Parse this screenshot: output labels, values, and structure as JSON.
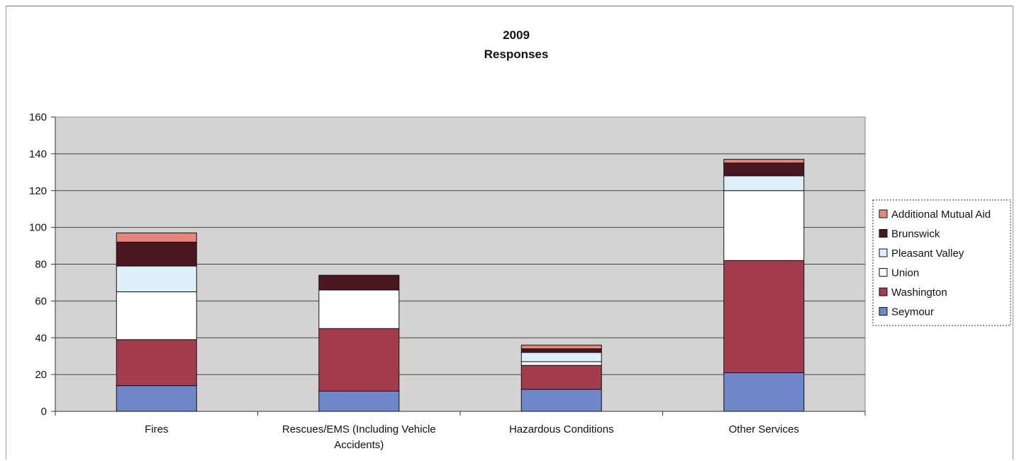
{
  "chart_data": {
    "type": "bar",
    "stacked": true,
    "title": "2009",
    "subtitle": "Responses",
    "xlabel": "",
    "ylabel": "",
    "ylim": [
      0,
      160
    ],
    "yticks": [
      "0",
      "20",
      "40",
      "60",
      "80",
      "100",
      "120",
      "140",
      "160"
    ],
    "grid": true,
    "legend_position": "right",
    "categories": [
      [
        "Fires"
      ],
      [
        "Rescues/EMS (Including Vehicle",
        "Accidents)"
      ],
      [
        "Hazardous Conditions"
      ],
      [
        "Other Services"
      ]
    ],
    "series": [
      {
        "name": "Seymour",
        "color": "#6f86c8",
        "values": [
          14,
          11,
          12,
          21
        ]
      },
      {
        "name": "Washington",
        "color": "#a33c4e",
        "values": [
          25,
          34,
          13,
          61
        ]
      },
      {
        "name": "Union",
        "color": "#ffffff",
        "values": [
          26,
          21,
          2,
          38
        ]
      },
      {
        "name": "Pleasant Valley",
        "color": "#dff0fa",
        "values": [
          14,
          0,
          5,
          8
        ]
      },
      {
        "name": "Brunswick",
        "color": "#4a1620",
        "values": [
          13,
          8,
          2,
          7
        ]
      },
      {
        "name": "Additional Mutual Aid",
        "color": "#e8857b",
        "values": [
          5,
          0,
          2,
          2
        ]
      }
    ],
    "legend_order": [
      "Additional Mutual Aid",
      "Brunswick",
      "Pleasant Valley",
      "Union",
      "Washington",
      "Seymour"
    ],
    "plot_background": "#d3d3d3"
  }
}
